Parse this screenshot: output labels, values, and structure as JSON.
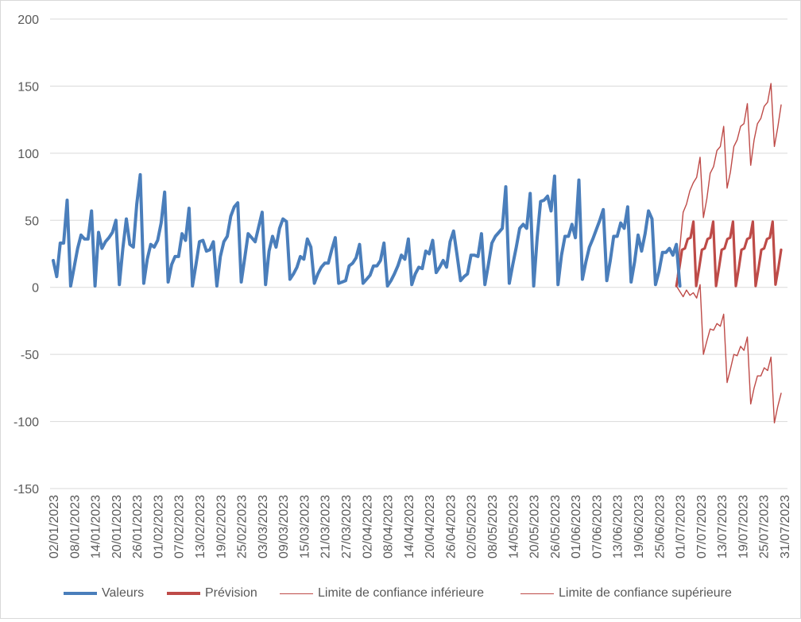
{
  "chart_data": {
    "type": "line",
    "title": "",
    "xlabel": "",
    "ylabel": "",
    "ylim": [
      -150,
      200
    ],
    "yticks": [
      200,
      150,
      100,
      50,
      0,
      -50,
      -100,
      -150
    ],
    "grid": true,
    "legend_position": "bottom",
    "x_start": "02/01/2023",
    "x_end": "31/07/2023",
    "forecast_start": "30/06/2023",
    "x_tick_labels": [
      "02/01/2023",
      "08/01/2023",
      "14/01/2023",
      "20/01/2023",
      "26/01/2023",
      "01/02/2023",
      "07/02/2023",
      "13/02/2023",
      "19/02/2023",
      "25/02/2023",
      "03/03/2023",
      "09/03/2023",
      "15/03/2023",
      "21/03/2023",
      "27/03/2023",
      "02/04/2023",
      "08/04/2023",
      "14/04/2023",
      "20/04/2023",
      "26/04/2023",
      "02/05/2023",
      "08/05/2023",
      "14/05/2023",
      "20/05/2023",
      "26/05/2023",
      "01/06/2023",
      "07/06/2023",
      "13/06/2023",
      "19/06/2023",
      "25/06/2023",
      "01/07/2023",
      "07/07/2023",
      "13/07/2023",
      "19/07/2023",
      "25/07/2023",
      "31/07/2023"
    ],
    "series": [
      {
        "name": "Valeurs",
        "color": "#4a7ebb",
        "values": [
          20,
          8,
          33,
          33,
          65,
          1,
          15,
          29,
          39,
          36,
          36,
          57,
          1,
          41,
          29,
          34,
          37,
          41,
          50,
          2,
          29,
          51,
          32,
          30,
          62,
          84,
          3,
          21,
          32,
          30,
          35,
          48,
          71,
          4,
          17,
          23,
          23,
          40,
          35,
          59,
          1,
          17,
          34,
          35,
          27,
          28,
          34,
          1,
          23,
          34,
          38,
          53,
          60,
          63,
          4,
          22,
          40,
          37,
          34,
          45,
          56,
          2,
          27,
          38,
          30,
          44,
          51,
          49,
          6,
          10,
          15,
          23,
          21,
          36,
          30,
          3,
          10,
          15,
          18,
          18,
          28,
          37,
          3,
          4,
          5,
          16,
          18,
          22,
          32,
          3,
          6,
          9,
          16,
          16,
          20,
          33,
          1,
          5,
          10,
          16,
          24,
          21,
          36,
          2,
          10,
          15,
          14,
          27,
          25,
          35,
          11,
          15,
          20,
          15,
          34,
          42,
          24,
          5,
          8,
          10,
          24,
          24,
          23,
          40,
          2,
          17,
          33,
          38,
          41,
          44,
          75,
          3,
          17,
          30,
          44,
          47,
          44,
          70,
          1,
          37,
          64,
          65,
          68,
          57,
          83,
          2,
          24,
          38,
          38,
          47,
          37,
          80,
          6,
          19,
          30,
          36,
          43,
          50,
          58,
          5,
          20,
          38,
          38,
          48,
          44,
          60,
          4,
          19,
          39,
          27,
          40,
          57,
          51,
          2,
          12,
          26,
          26,
          29,
          24,
          32,
          1
        ]
      },
      {
        "name": "Prévision",
        "color": "#be4b48",
        "values": [
          1,
          14,
          28,
          29,
          36,
          37,
          49,
          1,
          14,
          28,
          29,
          36,
          37,
          49,
          1,
          14,
          28,
          29,
          36,
          37,
          49,
          1,
          14,
          28,
          29,
          36,
          37,
          49,
          1,
          14,
          28,
          29,
          36,
          37,
          49,
          2,
          14,
          28
        ]
      },
      {
        "name": "Limite de confiance inférieure",
        "color": "#be4b48",
        "values": [
          1,
          -3,
          -7,
          -2,
          -6,
          -4,
          -8,
          2,
          -50,
          -40,
          -31,
          -32,
          -27,
          -29,
          -20,
          -71,
          -61,
          -50,
          -51,
          -44,
          -47,
          -37,
          -87,
          -75,
          -66,
          -66,
          -60,
          -62,
          -52,
          -101,
          -89,
          -79
        ]
      },
      {
        "name": "Limite de confiance supérieure",
        "color": "#be4b48",
        "values": [
          1,
          29,
          56,
          62,
          72,
          78,
          82,
          97,
          52,
          66,
          85,
          90,
          102,
          105,
          120,
          74,
          86,
          105,
          110,
          120,
          122,
          137,
          91,
          110,
          122,
          126,
          135,
          138,
          152,
          105,
          119,
          136
        ]
      }
    ]
  }
}
